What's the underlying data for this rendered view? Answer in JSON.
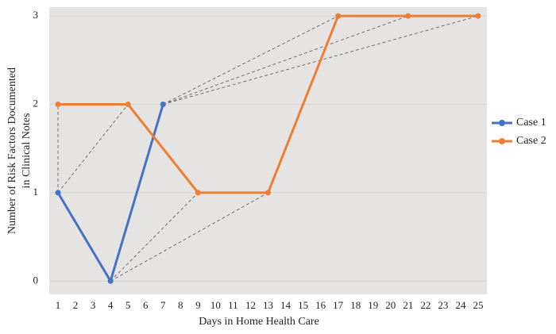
{
  "chart_data": {
    "type": "line",
    "ylabel": [
      "Number of Risk Factors Documented",
      "in Clinical Notes"
    ],
    "xlabel": "Days in Home Health Care",
    "series": [
      {
        "name": "Case 1",
        "color": "#4472c4",
        "x": [
          1,
          4,
          7
        ],
        "values": [
          1,
          0,
          2
        ]
      },
      {
        "name": "Case 2",
        "color": "#ed7d31",
        "x": [
          1,
          5,
          9,
          13,
          17,
          21,
          25
        ],
        "values": [
          2,
          2,
          1,
          1,
          3,
          3,
          3
        ]
      }
    ],
    "xlim": [
      0.5,
      25.5
    ],
    "xticks": [
      1,
      2,
      3,
      4,
      5,
      6,
      7,
      8,
      9,
      10,
      11,
      12,
      13,
      14,
      15,
      16,
      17,
      18,
      19,
      20,
      21,
      22,
      23,
      24,
      25
    ],
    "ylim": [
      -0.15,
      3.1
    ],
    "yticks": [
      0,
      1,
      2,
      3
    ],
    "grid": true,
    "legend": "right"
  }
}
